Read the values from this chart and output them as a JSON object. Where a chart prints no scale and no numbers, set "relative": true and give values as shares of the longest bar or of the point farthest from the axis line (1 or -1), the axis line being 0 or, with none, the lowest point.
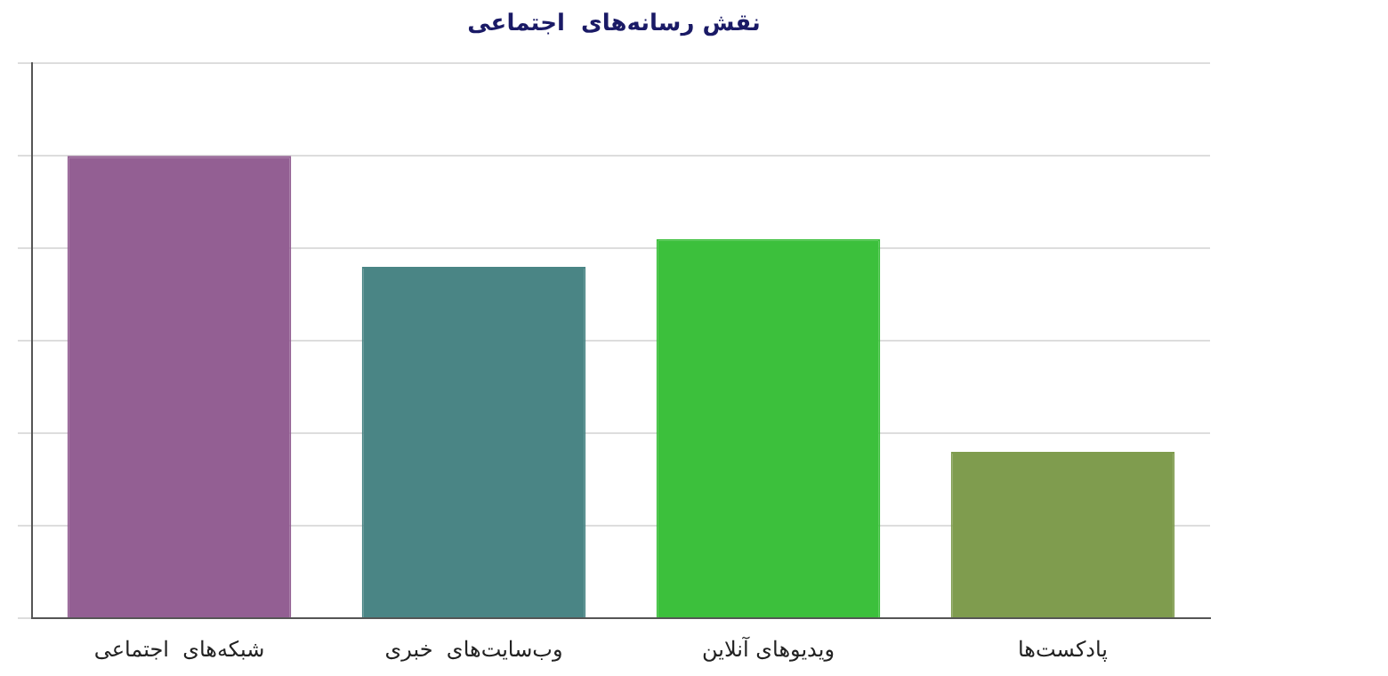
{
  "chart_data": {
    "type": "bar",
    "title": "نقش رسانه‌های  اجتماعی",
    "relative": true,
    "grid": "y",
    "legend": false,
    "categories": [
      "شبکه‌های  اجتماعی",
      "وب‌سایت‌های  خبری",
      "ویدیوهای آنلاین",
      "پادکست‌ها"
    ],
    "values": [
      1,
      0.76,
      0.82,
      0.36
    ],
    "colors": [
      "#935f93",
      "#4a8585",
      "#3cc03c",
      "#7f9c4e"
    ]
  }
}
